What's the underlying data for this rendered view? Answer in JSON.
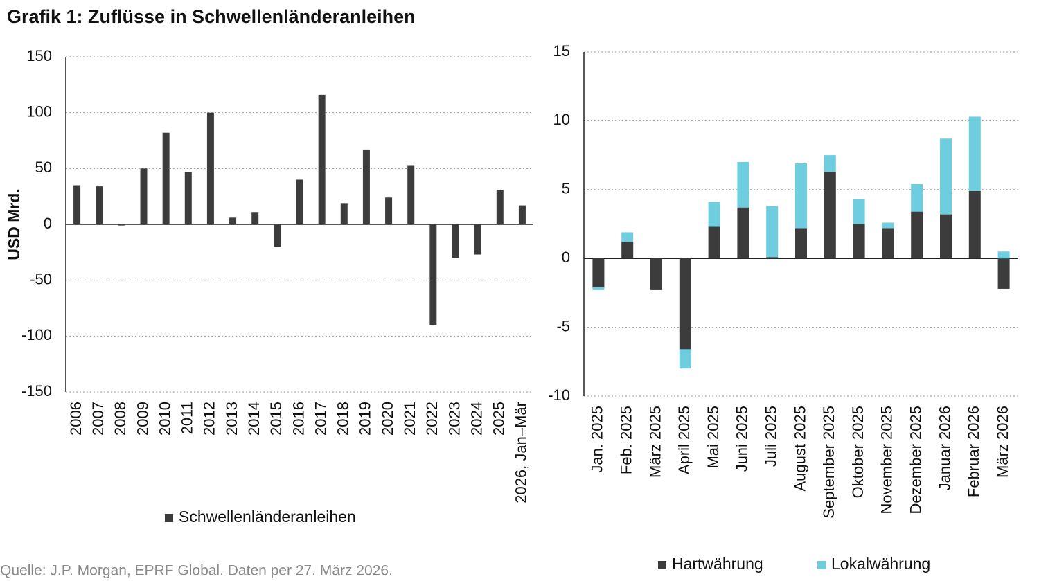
{
  "title": "Grafik 1: Zuflüsse in Schwellenländeranleihen",
  "source": "Quelle: J.P. Morgan, EPRF Global. Daten per 27. März 2026.",
  "chart_data": [
    {
      "type": "bar",
      "ylabel": "USD Mrd.",
      "categories": [
        "2006",
        "2007",
        "2008",
        "2009",
        "2010",
        "2011",
        "2012",
        "2013",
        "2014",
        "2015",
        "2016",
        "2017",
        "2018",
        "2019",
        "2020",
        "2021",
        "2022",
        "2023",
        "2024",
        "2025",
        "2026, Jan–Mär"
      ],
      "series": [
        {
          "name": "Schwellenländeranleihen",
          "color": "#3c3c3c",
          "values": [
            35,
            34,
            -1,
            50,
            82,
            47,
            100,
            6,
            11,
            -20,
            40,
            116,
            19,
            67,
            24,
            53,
            -90,
            -30,
            -27,
            31,
            17
          ]
        }
      ],
      "ylim": [
        -150,
        150
      ],
      "yticks": [
        -150,
        -100,
        -50,
        0,
        50,
        100,
        150
      ],
      "grid": true,
      "legend": "bottom"
    },
    {
      "type": "stacked_bar",
      "categories": [
        "Jan. 2025",
        "Feb. 2025",
        "März 2025",
        "April 2025",
        "Mai 2025",
        "Juni 2025",
        "Juli 2025",
        "August 2025",
        "September 2025",
        "Oktober 2025",
        "November 2025",
        "Dezember 2025",
        "Januar 2026",
        "Februar 2026",
        "März 2026"
      ],
      "series": [
        {
          "name": "Hartwährung",
          "color": "#3c3c3c",
          "values": [
            -2.1,
            1.2,
            -2.3,
            -6.6,
            2.3,
            3.7,
            0.1,
            2.2,
            6.3,
            2.5,
            2.2,
            3.4,
            3.2,
            4.9,
            -2.2
          ]
        },
        {
          "name": "Lokalwährung",
          "color": "#6fcde0",
          "values": [
            -0.2,
            0.7,
            0,
            -1.4,
            1.8,
            3.3,
            3.7,
            4.7,
            1.2,
            1.8,
            0.4,
            2.0,
            5.5,
            5.4,
            0.5
          ]
        }
      ],
      "ylim": [
        -10,
        15
      ],
      "yticks": [
        -10,
        -5,
        0,
        5,
        10,
        15
      ],
      "grid": true,
      "legend": "bottom"
    }
  ]
}
